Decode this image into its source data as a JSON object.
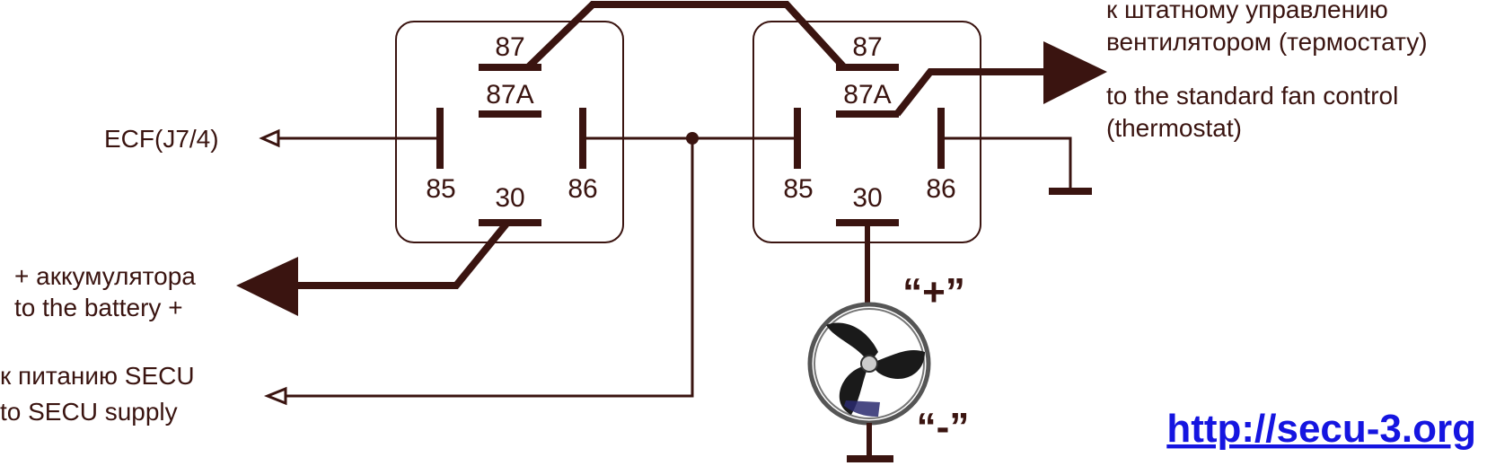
{
  "relay_left": {
    "pin_87": "87",
    "pin_87a": "87A",
    "pin_85": "85",
    "pin_86": "86",
    "pin_30": "30"
  },
  "relay_right": {
    "pin_87": "87",
    "pin_87a": "87A",
    "pin_85": "85",
    "pin_86": "86",
    "pin_30": "30"
  },
  "labels": {
    "ecf": "ECF(J7/4)",
    "battery_ru": "+ аккумулятора",
    "battery_en": "to the battery +",
    "secu_ru": "к питанию SECU",
    "secu_en": "to SECU supply",
    "fan_control_ru_1": "к штатному управлению",
    "fan_control_ru_2": "вентилятором (термостату)",
    "fan_control_en_1": "to the standard fan control",
    "fan_control_en_2": "(thermostat)",
    "fan_plus": "“+”",
    "fan_minus": "“-”"
  },
  "link": {
    "url": "http://secu-3.org"
  },
  "colors": {
    "wire": "#3a1410",
    "link": "#1515e0",
    "fan_body": "#1a1a1a",
    "fan_ring": "#555555"
  }
}
